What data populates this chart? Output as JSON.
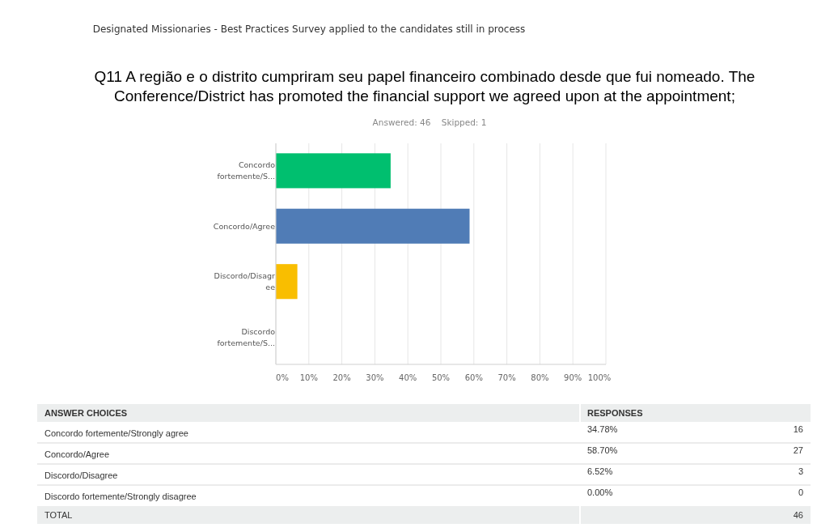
{
  "chart_data": {
    "type": "bar",
    "orientation": "horizontal",
    "title": "Q11 A região e o distrito cumpriram seu papel financeiro combinado desde que fui nomeado. The\nConference/District has promoted the financial support we agreed upon at the appointment;",
    "subtitle": "Answered: 46    Skipped: 1",
    "categories": [
      "Concordo\nfortemente/S...",
      "Concordo/Agree",
      "Discordo/Disagr\nee",
      "Discordo\nfortemente/S..."
    ],
    "values": [
      34.78,
      58.7,
      6.52,
      0
    ],
    "colors": [
      "#00bf6f",
      "#507cb6",
      "#f9be00",
      "#6bc8cd"
    ],
    "xlim": [
      0,
      100
    ],
    "xticks": [
      {
        "value": 0,
        "label": "0%"
      },
      {
        "value": 10,
        "label": "10%"
      },
      {
        "value": 20,
        "label": "20%"
      },
      {
        "value": 30,
        "label": "30%"
      },
      {
        "value": 40,
        "label": "40%"
      },
      {
        "value": 50,
        "label": "50%"
      },
      {
        "value": 60,
        "label": "60%"
      },
      {
        "value": 70,
        "label": "70%"
      },
      {
        "value": 80,
        "label": "80%"
      },
      {
        "value": 90,
        "label": "90%"
      },
      {
        "value": 100,
        "label": "100%"
      }
    ],
    "grid": "x",
    "annotations": [
      "Designated Missionaries - Best Practices Survey applied to the candidates still in process",
      "ANSWER CHOICES",
      "RESPONSES",
      "Concordo fortemente/Strongly agree",
      "Concordo/Agree",
      "Discordo/Disagree",
      "Discordo fortemente/Strongly disagree",
      "34.78%",
      "58.70%",
      "6.52%",
      "0.00%",
      "16",
      "27",
      "3",
      "0",
      "TOTAL",
      "46"
    ]
  }
}
